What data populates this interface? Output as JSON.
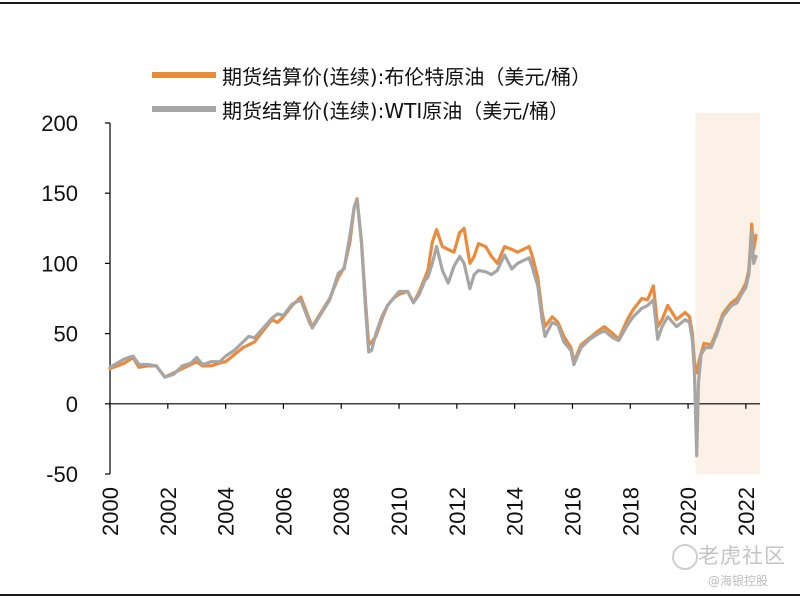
{
  "colors": {
    "brent": "#EA8A3B",
    "wti": "#A6A6A6",
    "highlight": "#FBF1E6",
    "axis": "#000000"
  },
  "watermark": {
    "main": "老虎社区",
    "sub": "@海银控股"
  },
  "chart_data": {
    "type": "line",
    "title": "",
    "xlabel": "",
    "ylabel": "",
    "xlim": [
      2000.0,
      2022.35
    ],
    "ylim": [
      -50,
      200
    ],
    "yticks": [
      200,
      150,
      100,
      50,
      0,
      -50
    ],
    "xticks": [
      "2000",
      "2002",
      "2004",
      "2006",
      "2008",
      "2010",
      "2012",
      "2014",
      "2016",
      "2018",
      "2020",
      "2022"
    ],
    "legend": "top-left",
    "grid": false,
    "highlight_range": [
      2020.25,
      2022.35
    ],
    "series": [
      {
        "name": "期货结算价(连续):布伦特原油（美元/桶）",
        "color": "#EA8A3B",
        "points": [
          [
            2000.0,
            25
          ],
          [
            2000.5,
            29
          ],
          [
            2000.8,
            33
          ],
          [
            2001.0,
            26
          ],
          [
            2001.3,
            27
          ],
          [
            2001.6,
            27
          ],
          [
            2001.9,
            19
          ],
          [
            2002.2,
            22
          ],
          [
            2002.5,
            25
          ],
          [
            2002.8,
            28
          ],
          [
            2003.0,
            30
          ],
          [
            2003.2,
            27
          ],
          [
            2003.5,
            27
          ],
          [
            2003.8,
            29
          ],
          [
            2004.0,
            30
          ],
          [
            2004.3,
            35
          ],
          [
            2004.6,
            40
          ],
          [
            2004.8,
            42
          ],
          [
            2005.0,
            44
          ],
          [
            2005.3,
            52
          ],
          [
            2005.6,
            60
          ],
          [
            2005.8,
            58
          ],
          [
            2006.0,
            62
          ],
          [
            2006.3,
            70
          ],
          [
            2006.6,
            76
          ],
          [
            2006.9,
            60
          ],
          [
            2007.0,
            55
          ],
          [
            2007.3,
            65
          ],
          [
            2007.6,
            75
          ],
          [
            2007.9,
            90
          ],
          [
            2008.1,
            97
          ],
          [
            2008.3,
            115
          ],
          [
            2008.45,
            140
          ],
          [
            2008.55,
            146
          ],
          [
            2008.7,
            115
          ],
          [
            2008.85,
            70
          ],
          [
            2008.95,
            42
          ],
          [
            2009.05,
            44
          ],
          [
            2009.2,
            48
          ],
          [
            2009.4,
            60
          ],
          [
            2009.6,
            70
          ],
          [
            2009.8,
            75
          ],
          [
            2010.0,
            78
          ],
          [
            2010.3,
            80
          ],
          [
            2010.5,
            72
          ],
          [
            2010.7,
            80
          ],
          [
            2010.9,
            90
          ],
          [
            2011.0,
            95
          ],
          [
            2011.15,
            115
          ],
          [
            2011.3,
            124
          ],
          [
            2011.5,
            112
          ],
          [
            2011.7,
            110
          ],
          [
            2011.9,
            108
          ],
          [
            2012.1,
            122
          ],
          [
            2012.25,
            125
          ],
          [
            2012.45,
            100
          ],
          [
            2012.6,
            105
          ],
          [
            2012.75,
            114
          ],
          [
            2013.0,
            112
          ],
          [
            2013.2,
            105
          ],
          [
            2013.4,
            100
          ],
          [
            2013.65,
            112
          ],
          [
            2013.9,
            110
          ],
          [
            2014.1,
            108
          ],
          [
            2014.3,
            110
          ],
          [
            2014.5,
            112
          ],
          [
            2014.6,
            106
          ],
          [
            2014.8,
            90
          ],
          [
            2014.95,
            65
          ],
          [
            2015.05,
            55
          ],
          [
            2015.3,
            62
          ],
          [
            2015.5,
            58
          ],
          [
            2015.7,
            48
          ],
          [
            2015.95,
            40
          ],
          [
            2016.05,
            30
          ],
          [
            2016.3,
            42
          ],
          [
            2016.6,
            47
          ],
          [
            2016.9,
            52
          ],
          [
            2017.1,
            55
          ],
          [
            2017.4,
            50
          ],
          [
            2017.6,
            46
          ],
          [
            2017.9,
            60
          ],
          [
            2018.1,
            67
          ],
          [
            2018.4,
            75
          ],
          [
            2018.6,
            74
          ],
          [
            2018.8,
            84
          ],
          [
            2018.95,
            55
          ],
          [
            2019.1,
            60
          ],
          [
            2019.3,
            70
          ],
          [
            2019.6,
            60
          ],
          [
            2019.9,
            65
          ],
          [
            2020.05,
            62
          ],
          [
            2020.15,
            50
          ],
          [
            2020.22,
            30
          ],
          [
            2020.3,
            22
          ],
          [
            2020.4,
            32
          ],
          [
            2020.55,
            43
          ],
          [
            2020.8,
            42
          ],
          [
            2021.0,
            52
          ],
          [
            2021.2,
            64
          ],
          [
            2021.5,
            72
          ],
          [
            2021.7,
            75
          ],
          [
            2021.85,
            80
          ],
          [
            2022.0,
            86
          ],
          [
            2022.1,
            95
          ],
          [
            2022.15,
            110
          ],
          [
            2022.2,
            128
          ],
          [
            2022.27,
            110
          ],
          [
            2022.35,
            120
          ]
        ]
      },
      {
        "name": "期货结算价(连续):WTI原油（美元/桶）",
        "color": "#A6A6A6",
        "points": [
          [
            2000.0,
            26
          ],
          [
            2000.5,
            32
          ],
          [
            2000.8,
            34
          ],
          [
            2001.0,
            28
          ],
          [
            2001.3,
            28
          ],
          [
            2001.6,
            27
          ],
          [
            2001.9,
            19
          ],
          [
            2002.2,
            21
          ],
          [
            2002.5,
            27
          ],
          [
            2002.8,
            29
          ],
          [
            2003.0,
            33
          ],
          [
            2003.2,
            28
          ],
          [
            2003.5,
            30
          ],
          [
            2003.8,
            30
          ],
          [
            2004.0,
            34
          ],
          [
            2004.3,
            38
          ],
          [
            2004.6,
            44
          ],
          [
            2004.8,
            48
          ],
          [
            2005.0,
            47
          ],
          [
            2005.3,
            54
          ],
          [
            2005.6,
            61
          ],
          [
            2005.8,
            64
          ],
          [
            2006.0,
            63
          ],
          [
            2006.3,
            71
          ],
          [
            2006.6,
            74
          ],
          [
            2006.9,
            58
          ],
          [
            2007.0,
            54
          ],
          [
            2007.3,
            64
          ],
          [
            2007.6,
            74
          ],
          [
            2007.9,
            93
          ],
          [
            2008.1,
            96
          ],
          [
            2008.3,
            120
          ],
          [
            2008.45,
            140
          ],
          [
            2008.55,
            145
          ],
          [
            2008.7,
            115
          ],
          [
            2008.85,
            65
          ],
          [
            2008.95,
            37
          ],
          [
            2009.05,
            38
          ],
          [
            2009.2,
            50
          ],
          [
            2009.4,
            62
          ],
          [
            2009.6,
            70
          ],
          [
            2009.8,
            75
          ],
          [
            2010.0,
            80
          ],
          [
            2010.3,
            80
          ],
          [
            2010.5,
            72
          ],
          [
            2010.7,
            78
          ],
          [
            2010.9,
            88
          ],
          [
            2011.0,
            90
          ],
          [
            2011.15,
            100
          ],
          [
            2011.3,
            112
          ],
          [
            2011.5,
            95
          ],
          [
            2011.7,
            86
          ],
          [
            2011.9,
            98
          ],
          [
            2012.1,
            105
          ],
          [
            2012.25,
            100
          ],
          [
            2012.45,
            82
          ],
          [
            2012.6,
            92
          ],
          [
            2012.75,
            95
          ],
          [
            2013.0,
            94
          ],
          [
            2013.2,
            92
          ],
          [
            2013.4,
            95
          ],
          [
            2013.65,
            106
          ],
          [
            2013.9,
            96
          ],
          [
            2014.1,
            100
          ],
          [
            2014.3,
            102
          ],
          [
            2014.5,
            104
          ],
          [
            2014.6,
            98
          ],
          [
            2014.8,
            84
          ],
          [
            2014.95,
            60
          ],
          [
            2015.05,
            48
          ],
          [
            2015.3,
            58
          ],
          [
            2015.5,
            56
          ],
          [
            2015.7,
            44
          ],
          [
            2015.95,
            38
          ],
          [
            2016.05,
            28
          ],
          [
            2016.3,
            40
          ],
          [
            2016.6,
            46
          ],
          [
            2016.9,
            50
          ],
          [
            2017.1,
            52
          ],
          [
            2017.4,
            47
          ],
          [
            2017.6,
            45
          ],
          [
            2017.9,
            56
          ],
          [
            2018.1,
            62
          ],
          [
            2018.4,
            68
          ],
          [
            2018.6,
            70
          ],
          [
            2018.8,
            74
          ],
          [
            2018.95,
            46
          ],
          [
            2019.1,
            55
          ],
          [
            2019.3,
            62
          ],
          [
            2019.6,
            55
          ],
          [
            2019.9,
            60
          ],
          [
            2020.05,
            58
          ],
          [
            2020.15,
            45
          ],
          [
            2020.22,
            23
          ],
          [
            2020.3,
            -37
          ],
          [
            2020.36,
            15
          ],
          [
            2020.45,
            35
          ],
          [
            2020.6,
            40
          ],
          [
            2020.8,
            40
          ],
          [
            2021.0,
            50
          ],
          [
            2021.2,
            62
          ],
          [
            2021.5,
            70
          ],
          [
            2021.7,
            72
          ],
          [
            2021.85,
            78
          ],
          [
            2022.0,
            83
          ],
          [
            2022.1,
            92
          ],
          [
            2022.15,
            105
          ],
          [
            2022.2,
            123
          ],
          [
            2022.27,
            100
          ],
          [
            2022.35,
            105
          ]
        ]
      }
    ]
  }
}
